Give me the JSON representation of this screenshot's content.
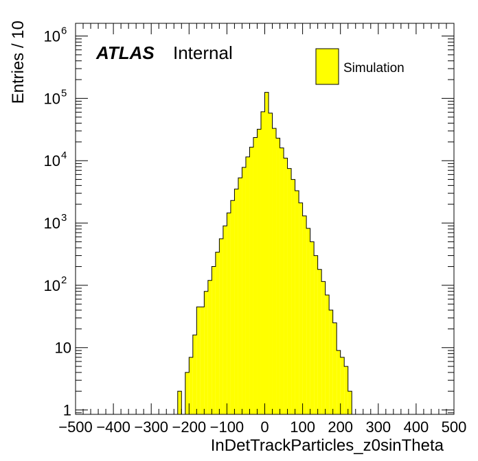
{
  "chart_data": {
    "type": "bar",
    "title": "",
    "xlabel": "InDetTrackParticles_z0sinTheta",
    "ylabel": "Entries / 10",
    "xlim": [
      -500,
      500
    ],
    "ylim": [
      0.85,
      1600000
    ],
    "yscale": "log",
    "bin_width": 10,
    "x_ticks": [
      "−500",
      "−400",
      "−300",
      "−200",
      "−100",
      "0",
      "100",
      "200",
      "300",
      "400",
      "500"
    ],
    "atlas_label": "ATLAS",
    "atlas_status": "Internal",
    "legend": {
      "label": "Simulation",
      "color": "#ffff00",
      "position": "top-right"
    },
    "series": [
      {
        "name": "Simulation",
        "bins": [
          {
            "x0": -230,
            "x1": -220,
            "y": 2
          },
          {
            "x0": -210,
            "x1": -200,
            "y": 4
          },
          {
            "x0": -200,
            "x1": -190,
            "y": 7
          },
          {
            "x0": -190,
            "x1": -180,
            "y": 16
          },
          {
            "x0": -180,
            "x1": -170,
            "y": 45
          },
          {
            "x0": -170,
            "x1": -160,
            "y": 45
          },
          {
            "x0": -160,
            "x1": -150,
            "y": 80
          },
          {
            "x0": -150,
            "x1": -140,
            "y": 120
          },
          {
            "x0": -140,
            "x1": -130,
            "y": 200
          },
          {
            "x0": -130,
            "x1": -120,
            "y": 340
          },
          {
            "x0": -120,
            "x1": -110,
            "y": 560
          },
          {
            "x0": -110,
            "x1": -100,
            "y": 900
          },
          {
            "x0": -100,
            "x1": -90,
            "y": 1450
          },
          {
            "x0": -90,
            "x1": -80,
            "y": 2300
          },
          {
            "x0": -80,
            "x1": -70,
            "y": 3500
          },
          {
            "x0": -70,
            "x1": -60,
            "y": 5300
          },
          {
            "x0": -60,
            "x1": -50,
            "y": 7800
          },
          {
            "x0": -50,
            "x1": -40,
            "y": 11500
          },
          {
            "x0": -40,
            "x1": -30,
            "y": 16500
          },
          {
            "x0": -30,
            "x1": -20,
            "y": 23500
          },
          {
            "x0": -20,
            "x1": -10,
            "y": 32000
          },
          {
            "x0": -10,
            "x1": 0,
            "y": 61000
          },
          {
            "x0": 0,
            "x1": 10,
            "y": 125000
          },
          {
            "x0": 10,
            "x1": 20,
            "y": 58000
          },
          {
            "x0": 20,
            "x1": 30,
            "y": 33000
          },
          {
            "x0": 30,
            "x1": 40,
            "y": 23000
          },
          {
            "x0": 40,
            "x1": 50,
            "y": 16000
          },
          {
            "x0": 50,
            "x1": 60,
            "y": 11000
          },
          {
            "x0": 60,
            "x1": 70,
            "y": 7500
          },
          {
            "x0": 70,
            "x1": 80,
            "y": 5000
          },
          {
            "x0": 80,
            "x1": 90,
            "y": 3300
          },
          {
            "x0": 90,
            "x1": 100,
            "y": 2100
          },
          {
            "x0": 100,
            "x1": 110,
            "y": 1300
          },
          {
            "x0": 110,
            "x1": 120,
            "y": 820
          },
          {
            "x0": 120,
            "x1": 130,
            "y": 500
          },
          {
            "x0": 130,
            "x1": 140,
            "y": 300
          },
          {
            "x0": 140,
            "x1": 150,
            "y": 180
          },
          {
            "x0": 150,
            "x1": 160,
            "y": 115
          },
          {
            "x0": 160,
            "x1": 170,
            "y": 70
          },
          {
            "x0": 170,
            "x1": 180,
            "y": 40
          },
          {
            "x0": 180,
            "x1": 190,
            "y": 25
          },
          {
            "x0": 190,
            "x1": 200,
            "y": 9
          },
          {
            "x0": 200,
            "x1": 210,
            "y": 7
          },
          {
            "x0": 210,
            "x1": 220,
            "y": 5
          },
          {
            "x0": 220,
            "x1": 230,
            "y": 2
          }
        ]
      }
    ],
    "grid": false
  }
}
